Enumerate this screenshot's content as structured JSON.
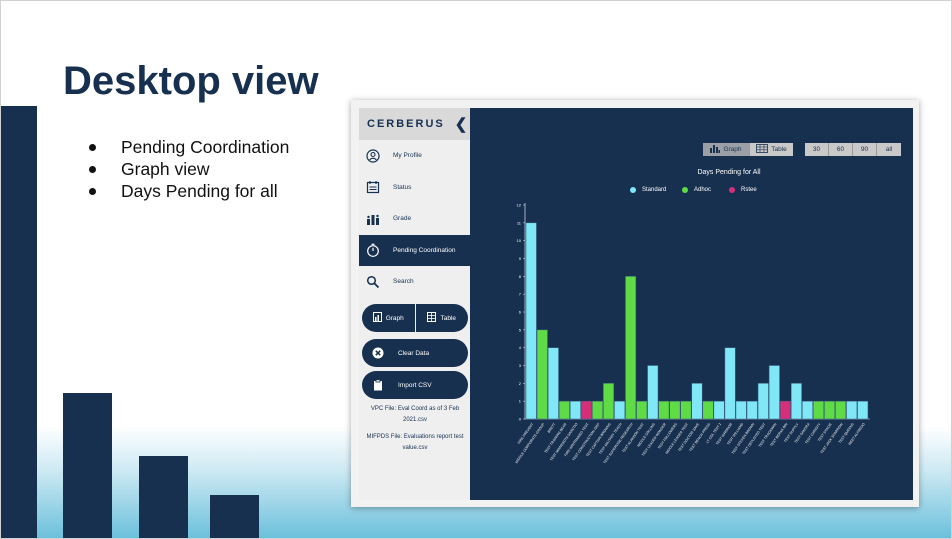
{
  "slide": {
    "title": "Desktop view",
    "bullets": [
      "Pending Coordination",
      "Graph view",
      "Days Pending for all"
    ]
  },
  "sidebar": {
    "brand": "CERBERUS",
    "items": [
      {
        "label": "My Profile",
        "icon": "user-icon"
      },
      {
        "label": "Status",
        "icon": "calendar-icon"
      },
      {
        "label": "Grade",
        "icon": "bar-chart-icon"
      },
      {
        "label": "Pending Coordination",
        "icon": "timer-icon",
        "active": true
      },
      {
        "label": "Search",
        "icon": "search-icon"
      }
    ],
    "graph_label": "Graph",
    "table_label": "Table",
    "clear_label": "Clear Data",
    "import_label": "Import CSV",
    "vpc_file": "VPC File: Eval Coord as of 3 Feb 2021.csv",
    "mifps_file": "MIFPDS File: Evaluations report test value.csv"
  },
  "toolbar": {
    "graph_label": "Graph",
    "table_label": "Table",
    "ranges": [
      "30",
      "60",
      "90",
      "all"
    ]
  },
  "colors": {
    "navy": "#17304f",
    "standard": "#7fe7f5",
    "adhoc": "#5edb45",
    "rstee": "#d62f7a"
  },
  "chart_data": {
    "type": "bar",
    "title": "Days Pending for All",
    "legend": [
      "Standard",
      "Adhoc",
      "Rstee"
    ],
    "ylim": [
      0,
      12
    ],
    "yticks": [
      0,
      1,
      2,
      3,
      4,
      5,
      6,
      7,
      8,
      9,
      10,
      11,
      12
    ],
    "grid": false,
    "categories": [
      "FIRE PREVENT",
      "MIDDLE CORPORATE GROUP",
      "BRETT",
      "TEST TRAINING BEAR",
      "TEST MINNESOTA SANCTIO",
      "FIRE WINTRAINED TEST",
      "TEST CONSTRUCTION GRP",
      "TEST CAPTAIN BROWNS",
      "TEST MILITARY TEACH",
      "TEST SUPERVISE RESEARCH",
      "TEST ALANSON TEST",
      "MIDDLE COLLINS",
      "TEST LEADER WONDER",
      "TEST FOLLOWERS",
      "MIDDLE LEADER TEST",
      "TEST DOCTOR SAVE",
      "TEST BENCH PRESS",
      "LT COL TEST 2",
      "TEST WARRIOR",
      "TEST WILLIAMS",
      "TEST STEVEN BROWN",
      "TEST DEPLOYED TEST",
      "TEST TRACKMAN",
      "TEST BERAK BIN",
      "TEST SUPPLY",
      "TEST SANDRA",
      "TEST CHRISTY",
      "TEST STACIE",
      "TEST JACK SPARROW",
      "TEST QUEENS",
      "MEET ALFREDO"
    ],
    "series": [
      {
        "name": "Standard",
        "values": [
          11,
          0,
          4,
          2,
          1,
          0,
          0,
          0,
          1,
          0,
          0,
          3,
          0,
          2,
          4,
          2,
          0,
          1,
          4,
          1,
          1,
          2,
          3,
          0,
          2,
          1,
          0,
          0,
          0,
          1,
          1
        ]
      },
      {
        "name": "Adhoc",
        "values": [
          0,
          5,
          0,
          1,
          0,
          0,
          1,
          2,
          0,
          8,
          1,
          0,
          1,
          1,
          1,
          0,
          1,
          0,
          0,
          0,
          0,
          0,
          0,
          0,
          0,
          0,
          1,
          1,
          1,
          0,
          0
        ]
      },
      {
        "name": "Rstee",
        "values": [
          0,
          0,
          0,
          0,
          0,
          1,
          0,
          0,
          0,
          0,
          0,
          0,
          0,
          0,
          0,
          0,
          0,
          0,
          0,
          0,
          0,
          0,
          0,
          1,
          0,
          0,
          0,
          0,
          0,
          0,
          0
        ]
      }
    ]
  }
}
